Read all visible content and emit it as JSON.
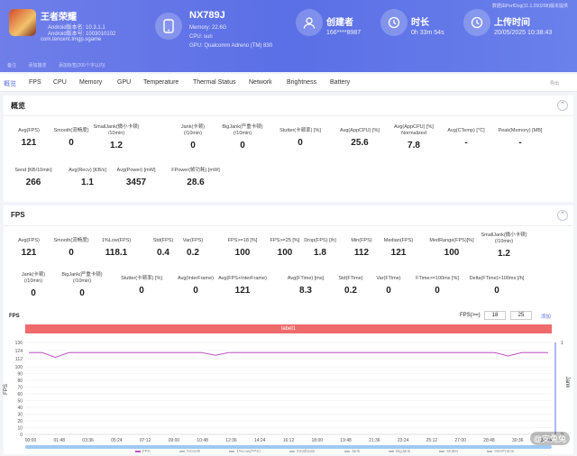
{
  "header": {
    "app_name": "王者荣耀",
    "app_lines": [
      "Android版本名: 10.3.1.1",
      "Android版本号: 1003010102"
    ],
    "package": "com.tencent.tmgp.sgame",
    "device_title": "NX789J",
    "device_lines": [
      "Memory: 22.6G",
      "CPU: sun",
      "GPU: Qualcomm Adreno (TM) 830"
    ],
    "creator_label": "创建者",
    "creator_value": "166****8987",
    "duration_label": "时长",
    "duration_value": "0h 33m 54s",
    "upload_label": "上传时间",
    "upload_value": "20/05/2025 10:38:43",
    "top_right": "数据由PerfDog(11.1.250208)版本提供",
    "subbar": [
      "备注",
      "添加描述",
      "添加标签(200个字以内)"
    ]
  },
  "tabs": [
    "概览",
    "FPS",
    "CPU",
    "Memory",
    "GPU",
    "Temperature",
    "Thermal Status",
    "Network",
    "Brightness",
    "Battery"
  ],
  "tab_right": "导出",
  "overview": {
    "title": "概览",
    "metrics": [
      {
        "label": "Avg(FPS)",
        "value": "121"
      },
      {
        "label": "Smooth(流畅度)",
        "value": "0"
      },
      {
        "label": "SmallJank(微小卡顿)\n/10min)",
        "value": "1.2"
      },
      {
        "label": "Jank(卡顿)\n(/10min)",
        "value": "0"
      },
      {
        "label": "BigJank(严重卡顿)\n(/10min)",
        "value": "0"
      },
      {
        "label": "Stutter(卡顿率) [%]",
        "value": "0"
      },
      {
        "label": "Avg(AppCPU) [%]",
        "value": "25.6"
      },
      {
        "label": "Avg(AppCPU) [%]\nNormalized",
        "value": "7.8"
      },
      {
        "label": "Avg(CTemp) [℃]",
        "value": "-"
      },
      {
        "label": "Peak(Memory) [MB]",
        "value": "-"
      },
      {
        "label": "Send [KB/10min]",
        "value": "266"
      },
      {
        "label": "Avg(Recv) [KB/s]",
        "value": "1.1"
      },
      {
        "label": "Avg(Power) [mW]",
        "value": "3457"
      },
      {
        "label": "FPower(帧功耗) [mW]",
        "value": "28.6"
      }
    ]
  },
  "fps": {
    "title": "FPS",
    "metrics": [
      {
        "label": "Avg(FPS)",
        "value": "121"
      },
      {
        "label": "Smooth(流畅度)",
        "value": "0"
      },
      {
        "label": "1%Low(FPS)",
        "value": "118.1"
      },
      {
        "label": "Std(FPS)",
        "value": "0.4"
      },
      {
        "label": "Var(FPS)",
        "value": "0.2"
      },
      {
        "label": "FPS>=18 [%]",
        "value": "100"
      },
      {
        "label": "FPS>=25 [%]",
        "value": "100"
      },
      {
        "label": "Drop(FPS) [/h]",
        "value": "1.8"
      },
      {
        "label": "Min(FPS)",
        "value": "112"
      },
      {
        "label": "Median(FPS)",
        "value": "121"
      },
      {
        "label": "MedRange(FPS)[%]",
        "value": "100"
      },
      {
        "label": "SmallJank(微小卡顿)\n(/10min)",
        "value": "1.2"
      },
      {
        "label": "Jank(卡顿)\n(/10min)",
        "value": "0"
      },
      {
        "label": "BigJank(严重卡顿)\n(/10min)",
        "value": "0"
      },
      {
        "label": "Stutter(卡顿率) [%]",
        "value": "0"
      },
      {
        "label": "Avg(InterFrame)",
        "value": "0"
      },
      {
        "label": "Avg(FPS+InterFrame)",
        "value": "121"
      },
      {
        "label": "Avg(FTime) [ms]",
        "value": "8.3"
      },
      {
        "label": "Std(FTime)",
        "value": "0.2"
      },
      {
        "label": "Var(FTime)",
        "value": "0"
      },
      {
        "label": "FTime>=100ms [%]",
        "value": "0"
      },
      {
        "label": "Delta(FTime)>100ms [/h]",
        "value": "0"
      }
    ],
    "chart_title": "FPS",
    "range_label": "FPS(>=)",
    "range_a": "18",
    "range_b": "25",
    "range_btn": "添加",
    "label_bar": "label1"
  },
  "chart_data": {
    "type": "line",
    "ylabel": "FPS",
    "y2label": "Jank",
    "yticks": [
      0,
      10,
      20,
      30,
      40,
      50,
      60,
      70,
      80,
      90,
      100,
      112,
      124,
      136
    ],
    "ylim": [
      0,
      136
    ],
    "y2ticks": [
      0,
      1
    ],
    "xticks": [
      "00:00",
      "01:48",
      "03:36",
      "05:24",
      "07:12",
      "09:00",
      "10:48",
      "12:36",
      "14:24",
      "16:12",
      "18:00",
      "19:48",
      "21:36",
      "23:24",
      "25:12",
      "27:00",
      "28:48",
      "30:36",
      "32:24"
    ],
    "series": [
      {
        "name": "FPS",
        "values": [
          121,
          121,
          114,
          121,
          121,
          121,
          121,
          121,
          121,
          121,
          121,
          121,
          121,
          121,
          117,
          121,
          121,
          121,
          121,
          121,
          121,
          121,
          121,
          121,
          121,
          121,
          121,
          121,
          121,
          121,
          121,
          121,
          121,
          121,
          121,
          121,
          116,
          121,
          121,
          121
        ]
      }
    ],
    "legend": [
      "FPS",
      "Smooth",
      "1%Low(FPS)",
      "SmallJank",
      "Jank",
      "BigJank",
      "Stutter",
      "InterFrame"
    ],
    "legend_colors": [
      "#c04fc0",
      "#bbbbbb",
      "#bbbbbb",
      "#bbbbbb",
      "#bbbbbb",
      "#bbbbbb",
      "#bbbbbb",
      "#bbbbbb"
    ]
  },
  "watermark": "@安兔兔"
}
